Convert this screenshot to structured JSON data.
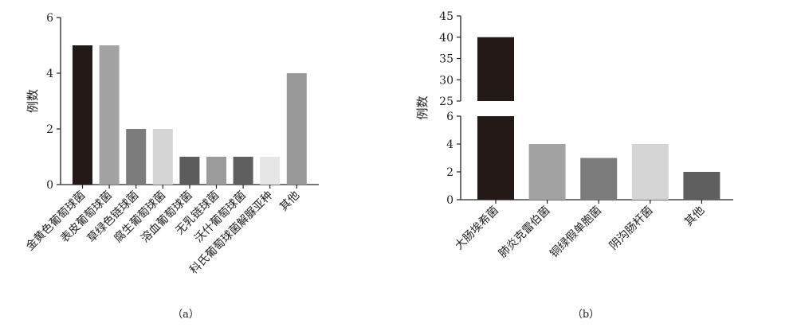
{
  "colors": {
    "axis": "#222222",
    "bar_palette_a": [
      "#231a18",
      "#a3a3a3",
      "#7c7c7c",
      "#d5d5d5",
      "#5c5c5c",
      "#9b9b9b",
      "#5f5f5f",
      "#e6e6e6",
      "#999999"
    ],
    "bar_palette_b": [
      "#231a18",
      "#a3a3a3",
      "#7c7c7c",
      "#d5d5d5",
      "#5f5f5f"
    ]
  },
  "chart_data": [
    {
      "type": "bar",
      "caption": "（a）",
      "ylabel": "例数",
      "xlabel": "",
      "ylim": [
        0,
        6
      ],
      "yticks": [
        0,
        2,
        4,
        6
      ],
      "categories": [
        "金黄色葡萄球菌",
        "表皮葡萄球菌",
        "草绿色链球菌",
        "腐生葡萄球菌",
        "溶血葡萄球菌",
        "无乳链球菌",
        "沃什葡萄球菌",
        "科氏葡萄球菌解脲亚种",
        "其他"
      ],
      "values": [
        5,
        5,
        2,
        2,
        1,
        1,
        1,
        1,
        4
      ],
      "grid": false
    },
    {
      "type": "bar",
      "caption": "（b）",
      "ylabel": "例数",
      "xlabel": "",
      "broken_axis": true,
      "ylim_lower": [
        0,
        6
      ],
      "yticks_lower": [
        0,
        2,
        4,
        6
      ],
      "ylim_upper": [
        25,
        45
      ],
      "yticks_upper": [
        25,
        30,
        35,
        40,
        45
      ],
      "categories": [
        "大肠埃希菌",
        "肺炎克雷伯菌",
        "铜绿假单胞菌",
        "阴沟肠杆菌",
        "其他"
      ],
      "values": [
        40,
        4,
        3,
        4,
        2
      ],
      "grid": false
    }
  ]
}
